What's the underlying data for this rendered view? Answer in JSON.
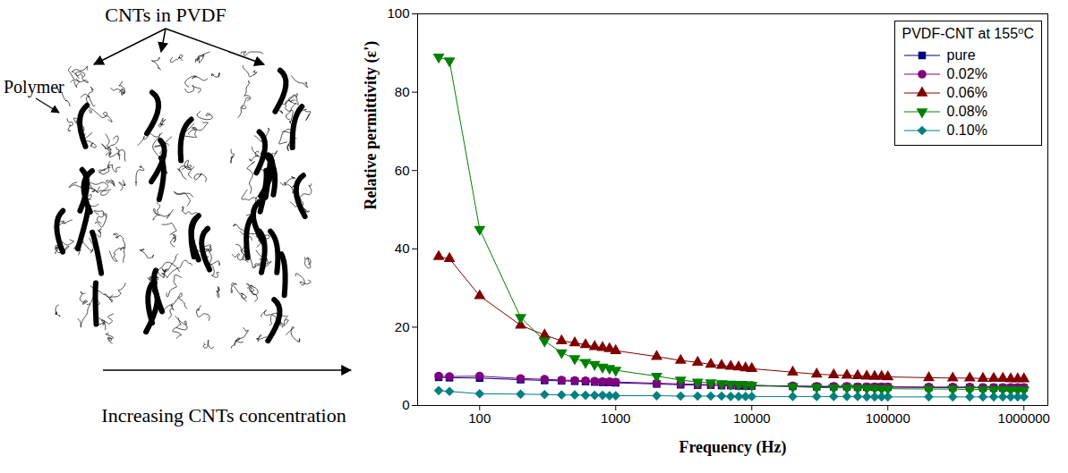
{
  "diagram": {
    "title": "CNTs in PVDF",
    "label": "Polymer",
    "arrow_label": "Increasing CNTs concentration"
  },
  "chart_data": {
    "type": "line",
    "legend_title": "PVDF-CNT at 155⁰C",
    "x_label": "Frequency (Hz)",
    "y_label": "Relative permittivity (ε')",
    "log": "x",
    "grid": false,
    "legend": "top-right",
    "xlim": [
      35,
      1500000
    ],
    "xticks": [
      100,
      1000,
      10000,
      100000,
      1000000
    ],
    "ylim": [
      0,
      100
    ],
    "yticks": [
      0,
      20,
      40,
      60,
      80,
      100
    ],
    "x": [
      50,
      60,
      100,
      200,
      300,
      400,
      500,
      600,
      700,
      800,
      900,
      1000,
      2000,
      3000,
      4000,
      5000,
      6000,
      7000,
      8000,
      9000,
      10000,
      20000,
      30000,
      40000,
      50000,
      60000,
      70000,
      80000,
      90000,
      100000,
      200000,
      300000,
      400000,
      500000,
      600000,
      700000,
      800000,
      900000,
      1000000
    ],
    "series": [
      {
        "name": "pure",
        "color": "#000080",
        "marker": "square",
        "line_style": "solid",
        "values": [
          7.2,
          7.1,
          7.0,
          6.6,
          6.4,
          6.3,
          6.2,
          6.1,
          6.0,
          5.9,
          5.9,
          5.8,
          5.5,
          5.3,
          5.2,
          5.2,
          5.1,
          5.1,
          5.0,
          5.0,
          5.0,
          4.9,
          4.8,
          4.8,
          4.8,
          4.7,
          4.7,
          4.7,
          4.7,
          4.7,
          4.6,
          4.6,
          4.6,
          4.5,
          4.5,
          4.5,
          4.5,
          4.5,
          4.5
        ]
      },
      {
        "name": "0.02%",
        "color": "#800080",
        "marker": "circle",
        "line_style": "solid",
        "values": [
          7.5,
          7.4,
          7.5,
          6.9,
          6.7,
          6.5,
          6.4,
          6.3,
          6.2,
          6.1,
          6.1,
          6.0,
          5.7,
          5.5,
          5.4,
          5.3,
          5.3,
          5.2,
          5.2,
          5.2,
          5.1,
          5.0,
          4.9,
          4.9,
          4.9,
          4.8,
          4.8,
          4.8,
          4.8,
          4.8,
          4.7,
          4.7,
          4.7,
          4.6,
          4.6,
          4.6,
          4.6,
          4.6,
          4.6
        ]
      },
      {
        "name": "0.06%",
        "color": "#800000",
        "marker": "triangle",
        "line_style": "solid",
        "values": [
          38,
          37.5,
          28,
          20.5,
          18,
          16.5,
          16,
          15.5,
          15,
          14.8,
          14.5,
          14,
          12.5,
          11.5,
          11,
          10.5,
          10.2,
          10,
          9.8,
          9.6,
          9.4,
          8.5,
          8,
          7.8,
          7.7,
          7.6,
          7.5,
          7.4,
          7.4,
          7.3,
          7.1,
          7,
          7,
          6.9,
          6.9,
          6.9,
          6.8,
          6.8,
          6.8
        ]
      },
      {
        "name": "0.08%",
        "color": "#008000",
        "marker": "triangle-down",
        "line_style": "solid",
        "values": [
          89,
          88,
          45,
          22.5,
          16.5,
          13.5,
          12,
          11,
          10.5,
          9.8,
          9.5,
          9,
          7.5,
          6.5,
          6,
          5.8,
          5.6,
          5.5,
          5.4,
          5.3,
          5.2,
          4.8,
          4.6,
          4.5,
          4.5,
          4.4,
          4.4,
          4.4,
          4.3,
          4.3,
          4.2,
          4.2,
          4.1,
          4.1,
          4.1,
          4.1,
          4,
          4,
          4
        ]
      },
      {
        "name": "0.10%",
        "color": "#008080",
        "marker": "diamond",
        "line_style": "solid",
        "values": [
          3.8,
          3.6,
          3.0,
          2.9,
          2.8,
          2.7,
          2.7,
          2.6,
          2.6,
          2.6,
          2.5,
          2.5,
          2.5,
          2.4,
          2.4,
          2.4,
          2.4,
          2.3,
          2.3,
          2.3,
          2.3,
          2.3,
          2.3,
          2.3,
          2.3,
          2.3,
          2.2,
          2.2,
          2.2,
          2.2,
          2.2,
          2.2,
          2.2,
          2.2,
          2.2,
          2.2,
          2.2,
          2.2,
          2.2
        ]
      }
    ]
  }
}
